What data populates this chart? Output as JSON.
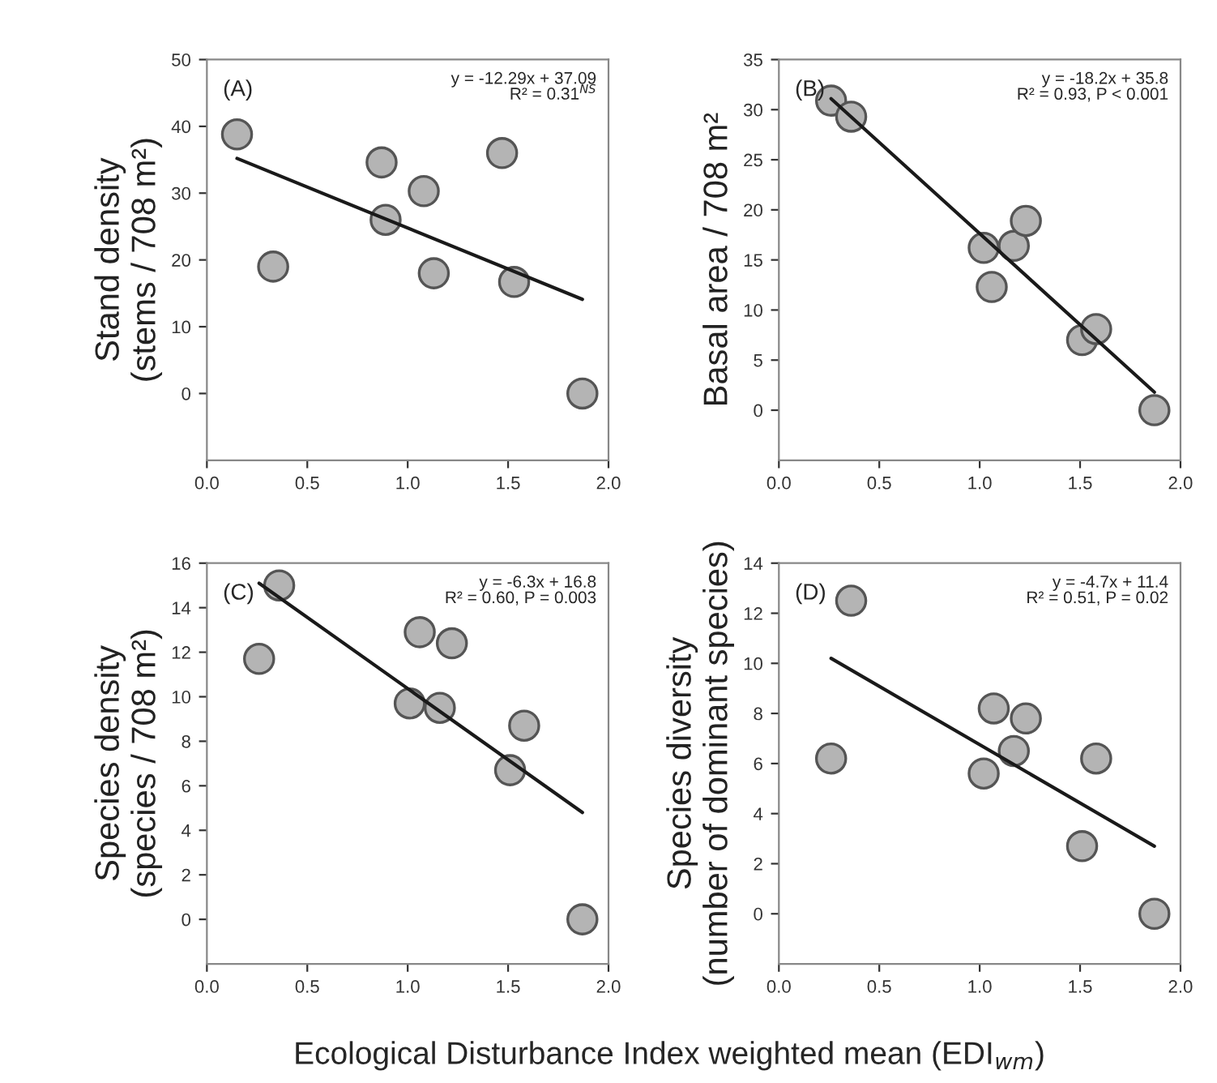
{
  "chart_data": [
    {
      "type": "scatter",
      "ylabel": "Stand density\n(stems / 708 m²)",
      "annotations": [
        "(A)",
        "y = -12.29x + 37.09\nR² = 0.31$^{NS}$"
      ],
      "xlim": [
        0,
        2
      ],
      "xticks": [
        {
          "value": 0,
          "label": "0.0"
        },
        {
          "value": 0.5,
          "label": "0.5"
        },
        {
          "value": 1,
          "label": "1.0"
        },
        {
          "value": 1.5,
          "label": "1.5"
        },
        {
          "value": 2,
          "label": "2.0"
        }
      ],
      "ylim": [
        -10,
        50
      ],
      "yticks": [
        0,
        10,
        20,
        30,
        40,
        50
      ],
      "grid": false,
      "series": [
        {
          "marker": "circle",
          "color": "#b4b4b4",
          "x": [
            0.15,
            0.33,
            0.87,
            0.89,
            1.08,
            1.13,
            1.47,
            1.53,
            1.87
          ],
          "values": [
            38.8,
            19,
            34.6,
            26,
            30.3,
            18,
            36,
            16.7,
            0
          ]
        },
        {
          "type": "line",
          "color": "#1a1a1a",
          "x": [
            0.15,
            1.87
          ],
          "values": [
            35.2,
            14.1
          ]
        }
      ]
    },
    {
      "type": "scatter",
      "ylabel": "Basal area / 708 m²",
      "annotations": [
        "(B)",
        "y = -18.2x + 35.8\nR² = 0.93, P < 0.001"
      ],
      "xlim": [
        0,
        2
      ],
      "xticks": [
        {
          "value": 0,
          "label": "0.0"
        },
        {
          "value": 0.5,
          "label": "0.5"
        },
        {
          "value": 1,
          "label": "1.0"
        },
        {
          "value": 1.5,
          "label": "1.5"
        },
        {
          "value": 2,
          "label": "2.0"
        }
      ],
      "ylim": [
        -5,
        35
      ],
      "yticks": [
        0,
        5,
        10,
        15,
        20,
        25,
        30,
        35
      ],
      "grid": false,
      "series": [
        {
          "marker": "circle",
          "color": "#b4b4b4",
          "x": [
            0.26,
            0.36,
            1.02,
            1.06,
            1.17,
            1.23,
            1.51,
            1.58,
            1.87
          ],
          "values": [
            30.9,
            29.3,
            16.2,
            12.3,
            16.4,
            18.9,
            7,
            8.1,
            0
          ]
        },
        {
          "type": "line",
          "color": "#1a1a1a",
          "x": [
            0.26,
            1.87
          ],
          "values": [
            31.1,
            1.8
          ]
        }
      ]
    },
    {
      "type": "scatter",
      "ylabel": "Species density\n(species / 708 m²)",
      "annotations": [
        "(C)",
        "y = -6.3x + 16.8\nR² = 0.60, P = 0.003"
      ],
      "xlim": [
        0,
        2
      ],
      "xticks": [
        {
          "value": 0,
          "label": "0.0"
        },
        {
          "value": 0.5,
          "label": "0.5"
        },
        {
          "value": 1,
          "label": "1.0"
        },
        {
          "value": 1.5,
          "label": "1.5"
        },
        {
          "value": 2,
          "label": "2.0"
        }
      ],
      "ylim": [
        -2,
        16
      ],
      "yticks": [
        0,
        2,
        4,
        6,
        8,
        10,
        12,
        14,
        16
      ],
      "grid": false,
      "series": [
        {
          "marker": "circle",
          "color": "#b4b4b4",
          "x": [
            0.26,
            0.36,
            1.01,
            1.06,
            1.16,
            1.22,
            1.51,
            1.58,
            1.87
          ],
          "values": [
            11.7,
            15,
            9.7,
            12.9,
            9.5,
            12.4,
            6.7,
            8.7,
            0
          ]
        },
        {
          "type": "line",
          "color": "#1a1a1a",
          "x": [
            0.26,
            1.87
          ],
          "values": [
            15.1,
            4.8
          ]
        }
      ]
    },
    {
      "type": "scatter",
      "ylabel": "Species diversity\n(number of dominant species)",
      "xlabel": "Ecological Disturbance Index weighted mean (EDI$_{wm}$)",
      "annotations": [
        "(D)",
        "y = -4.7x + 11.4\nR² = 0.51, P = 0.02"
      ],
      "xlim": [
        0,
        2
      ],
      "xticks": [
        {
          "value": 0,
          "label": "0.0"
        },
        {
          "value": 0.5,
          "label": "0.5"
        },
        {
          "value": 1,
          "label": "1.0"
        },
        {
          "value": 1.5,
          "label": "1.5"
        },
        {
          "value": 2,
          "label": "2.0"
        }
      ],
      "ylim": [
        -2,
        14
      ],
      "yticks": [
        0,
        2,
        4,
        6,
        8,
        10,
        12,
        14
      ],
      "grid": false,
      "series": [
        {
          "marker": "circle",
          "color": "#b4b4b4",
          "x": [
            0.26,
            0.36,
            1.02,
            1.07,
            1.17,
            1.23,
            1.51,
            1.58,
            1.87
          ],
          "values": [
            6.2,
            12.5,
            5.6,
            8.2,
            6.5,
            7.8,
            2.7,
            6.2,
            0
          ]
        },
        {
          "type": "line",
          "color": "#1a1a1a",
          "x": [
            0.26,
            1.87
          ],
          "values": [
            10.2,
            2.7
          ]
        }
      ]
    }
  ]
}
